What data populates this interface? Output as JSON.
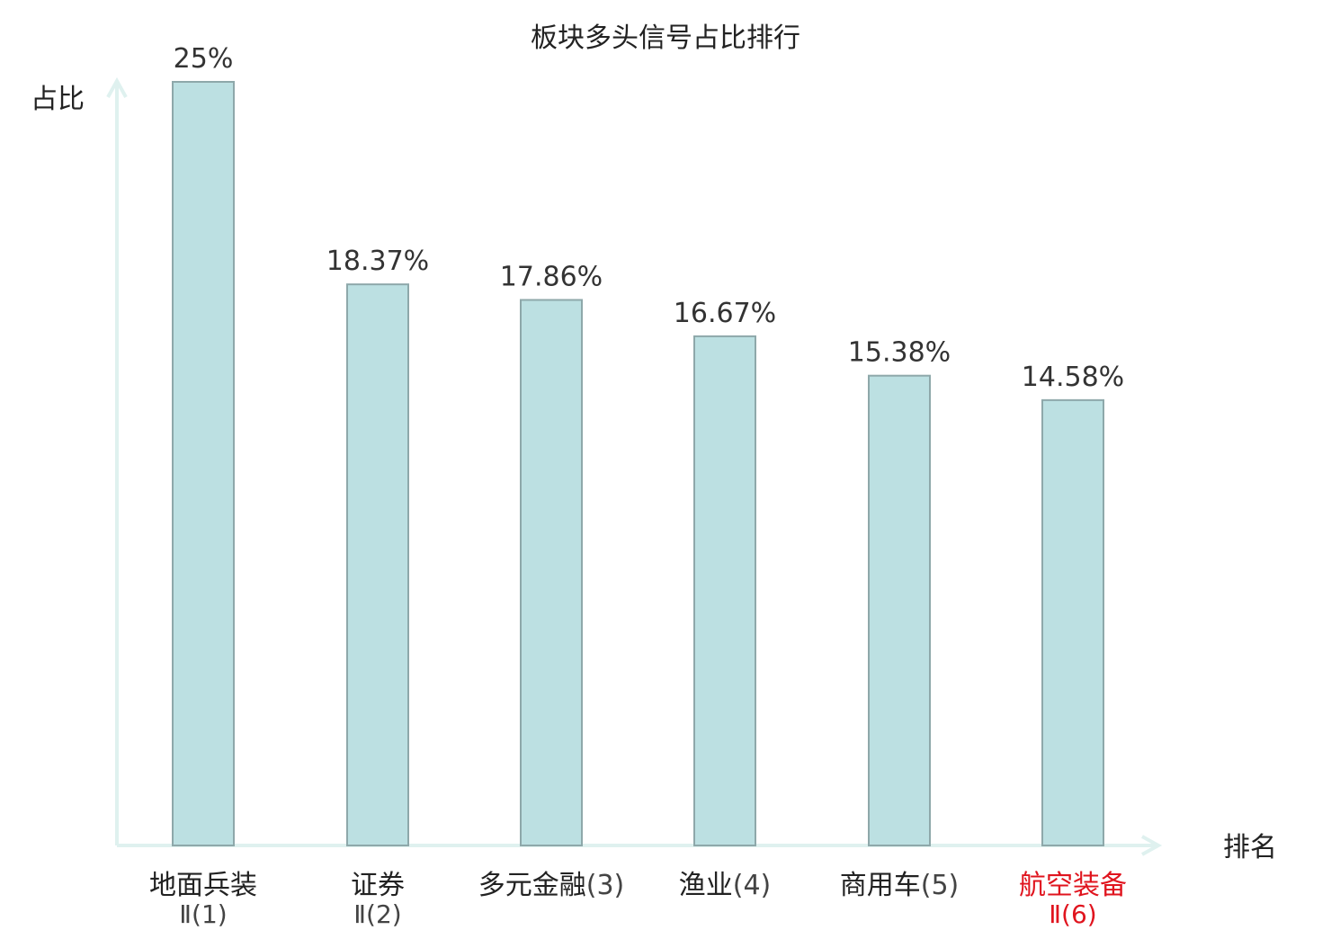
{
  "chart_data": {
    "type": "bar",
    "title": "板块多头信号占比排行",
    "ylabel": "占比",
    "xlabel": "排名",
    "unit": "%",
    "ylim": [
      0,
      25
    ],
    "grid": false,
    "legend": "none",
    "categories": [
      {
        "name": "地面兵装",
        "rank": "Ⅱ(1)",
        "highlight": false
      },
      {
        "name": "证券",
        "rank": "Ⅱ(2)",
        "highlight": false
      },
      {
        "name": "多元金融",
        "rank": "(3)",
        "highlight": false
      },
      {
        "name": "渔业",
        "rank": "(4)",
        "highlight": false
      },
      {
        "name": "商用车",
        "rank": "(5)",
        "highlight": false
      },
      {
        "name": "航空装备",
        "rank": "Ⅱ(6)",
        "highlight": true
      }
    ],
    "values": [
      25,
      18.37,
      17.86,
      16.67,
      15.38,
      14.58
    ],
    "value_labels": [
      "25%",
      "18.37%",
      "17.86%",
      "16.67%",
      "15.38%",
      "14.58%"
    ],
    "colors": {
      "bar_fill": "#bce0e2",
      "bar_stroke": "#8ea8aa",
      "axis": "#dff1ef",
      "label": "#222222",
      "rank_text": "#444444",
      "highlight": "#e0141e"
    }
  }
}
